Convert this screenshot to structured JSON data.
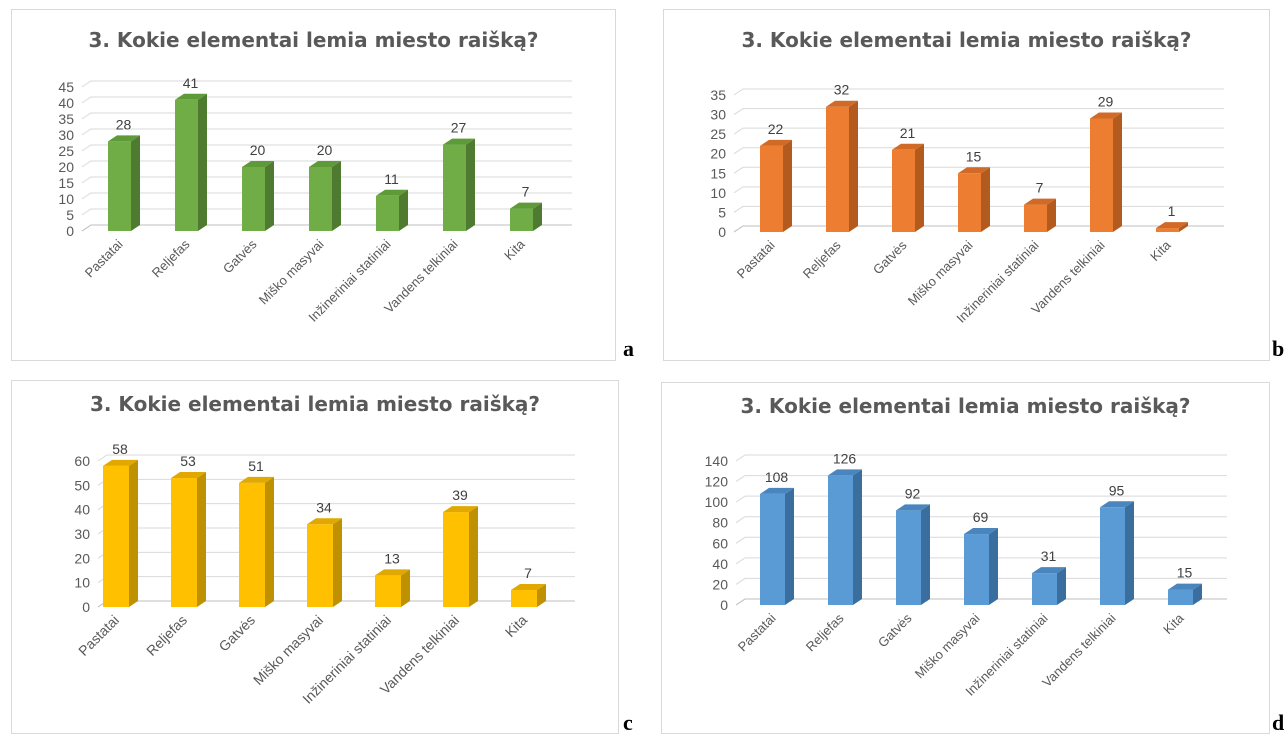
{
  "charts": [
    {
      "id": "a",
      "letter": "a",
      "title": "3. Kokie elementai lemia miesto raišką?"
    },
    {
      "id": "b",
      "letter": "b",
      "title": "3. Kokie elementai lemia miesto raišką?"
    },
    {
      "id": "c",
      "letter": "c",
      "title": "3. Kokie elementai lemia miesto raišką?"
    },
    {
      "id": "d",
      "letter": "d",
      "title": "3. Kokie elementai lemia miesto raišką?"
    }
  ],
  "chart_data": [
    {
      "type": "bar",
      "title": "3. Kokie elementai lemia miesto raišką?",
      "categories": [
        "Pastatai",
        "Reljefas",
        "Gatvės",
        "Miško masyvai",
        "Inžineriniai statiniai",
        "Vandens telkiniai",
        "Kita"
      ],
      "values": [
        28,
        41,
        20,
        20,
        11,
        27,
        7
      ],
      "ylim": [
        0,
        45
      ],
      "ytick_step": 5,
      "grid": true,
      "colors": {
        "front": "#70ad47",
        "side": "#4f7b31",
        "top": "#5e9a38"
      }
    },
    {
      "type": "bar",
      "title": "3. Kokie elementai lemia miesto raišką?",
      "categories": [
        "Pastatai",
        "Reljefas",
        "Gatvės",
        "Miško masyvai",
        "Inžineriniai statiniai",
        "Vandens telkiniai",
        "Kita"
      ],
      "values": [
        22,
        32,
        21,
        15,
        7,
        29,
        1
      ],
      "ylim": [
        0,
        35
      ],
      "ytick_step": 5,
      "grid": true,
      "colors": {
        "front": "#ed7d31",
        "side": "#b35a1f",
        "top": "#d06a26"
      }
    },
    {
      "type": "bar",
      "title": "3. Kokie elementai lemia miesto raišką?",
      "categories": [
        "Pastatai",
        "Reljefas",
        "Gatvės",
        "Miško masyvai",
        "Inžineriniai statiniai",
        "Vandens telkiniai",
        "Kita"
      ],
      "values": [
        58,
        53,
        51,
        34,
        13,
        39,
        7
      ],
      "ylim": [
        0,
        60
      ],
      "ytick_step": 10,
      "grid": true,
      "colors": {
        "front": "#ffc000",
        "side": "#bf9000",
        "top": "#e0a800"
      }
    },
    {
      "type": "bar",
      "title": "3. Kokie elementai lemia miesto raišką?",
      "categories": [
        "Pastatai",
        "Reljefas",
        "Gatvės",
        "Miško masyvai",
        "Inžineriniai statiniai",
        "Vandens telkiniai",
        "Kita"
      ],
      "values": [
        108,
        126,
        92,
        69,
        31,
        95,
        15
      ],
      "ylim": [
        0,
        140
      ],
      "ytick_step": 20,
      "grid": true,
      "colors": {
        "front": "#5b9bd5",
        "side": "#3a6e9e",
        "top": "#4a86bd"
      }
    }
  ]
}
